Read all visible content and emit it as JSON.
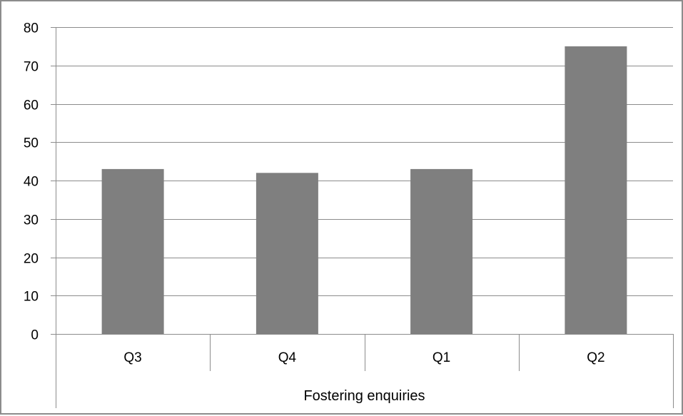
{
  "chart_data": {
    "type": "bar",
    "categories": [
      "Q3",
      "Q4",
      "Q1",
      "Q2"
    ],
    "values": [
      43,
      42,
      43,
      75
    ],
    "ylim": [
      0,
      80
    ],
    "yticks": [
      "0",
      "10",
      "20",
      "30",
      "40",
      "50",
      "60",
      "70",
      "80"
    ],
    "xlabel": "Fostering enquiries",
    "grid": true,
    "colors": {
      "bar": "#7f7f7f",
      "grid": "#8c8c8c",
      "axis": "#8c8c8c",
      "frame": "#8c8c8c"
    }
  }
}
